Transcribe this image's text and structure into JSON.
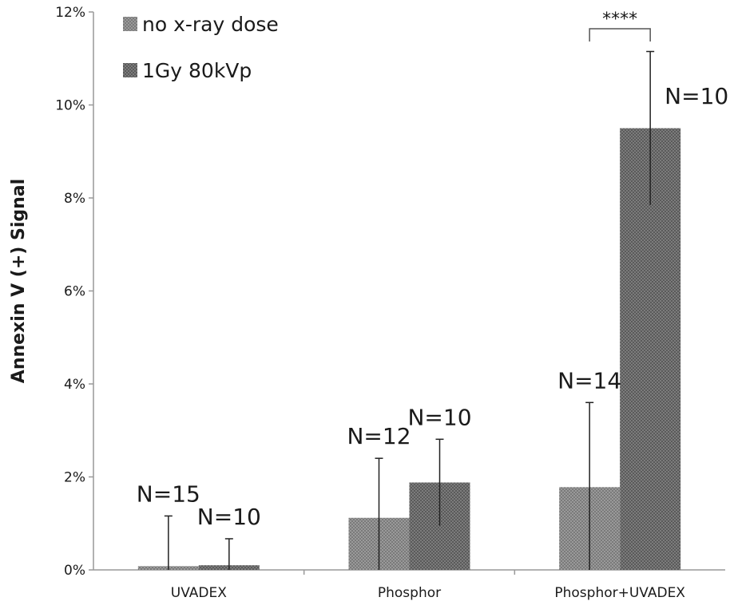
{
  "chart_data": {
    "type": "bar",
    "ylabel": "Annexin V (+) Signal",
    "xlabel": "",
    "ylim": [
      0,
      12
    ],
    "yticks": [
      0,
      2,
      4,
      6,
      8,
      10,
      12
    ],
    "ytick_labels": [
      "0%",
      "2%",
      "4%",
      "6%",
      "8%",
      "10%",
      "12%"
    ],
    "categories": [
      "UVADEX",
      "Phosphor",
      "Phosphor+UVADEX"
    ],
    "legend_position": "top-left",
    "grid": false,
    "series": [
      {
        "name": "no x-ray dose",
        "color": "#8c8c8c",
        "values": [
          0.08,
          1.12,
          1.78
        ],
        "error": [
          1.08,
          1.28,
          1.82
        ],
        "n_labels": [
          "N=15",
          "N=12",
          "N=14"
        ]
      },
      {
        "name": "1Gy 80kVp",
        "color": "#6e6e6e",
        "values": [
          0.1,
          1.88,
          9.5
        ],
        "error": [
          0.57,
          0.93,
          1.65
        ],
        "n_labels": [
          "N=10",
          "N=10",
          "N=10"
        ]
      }
    ],
    "significance": {
      "category": "Phosphor+UVADEX",
      "label": "****"
    }
  }
}
